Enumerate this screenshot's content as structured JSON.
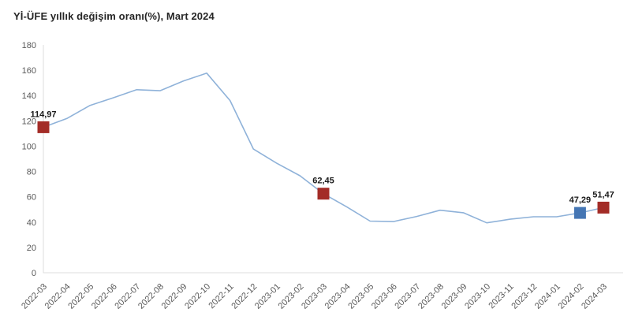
{
  "chart_data": {
    "type": "line",
    "title": "Yİ-ÜFE yıllık değişim oranı(%), Mart 2024",
    "categories": [
      "2022-03",
      "2022-04",
      "2022-05",
      "2022-06",
      "2022-07",
      "2022-08",
      "2022-09",
      "2022-10",
      "2022-11",
      "2022-12",
      "2023-01",
      "2023-02",
      "2023-03",
      "2023-04",
      "2023-05",
      "2023-06",
      "2023-07",
      "2023-08",
      "2023-09",
      "2023-10",
      "2023-11",
      "2023-12",
      "2024-01",
      "2024-02",
      "2024-03"
    ],
    "values": [
      114.97,
      121.8,
      132.2,
      138.3,
      144.6,
      143.8,
      151.5,
      157.7,
      136.0,
      97.7,
      86.5,
      76.6,
      62.45,
      52.1,
      40.8,
      40.4,
      44.5,
      49.4,
      47.4,
      39.4,
      42.3,
      44.2,
      44.2,
      47.29,
      51.47
    ],
    "y_ticks": [
      0,
      20,
      40,
      60,
      80,
      100,
      120,
      140,
      160,
      180
    ],
    "ylim": [
      0,
      180
    ],
    "grid": false,
    "legend": "none",
    "line_color": "#8FB2D9",
    "axis_color": "#DCDCDC",
    "marker_color_default": "#A32C27",
    "marker_color_highlight": "#4576B4",
    "labeled_points": [
      {
        "category": "2022-03",
        "label": "114,97",
        "marker": "red"
      },
      {
        "category": "2023-03",
        "label": "62,45",
        "marker": "red"
      },
      {
        "category": "2024-02",
        "label": "47,29",
        "marker": "blue"
      },
      {
        "category": "2024-03",
        "label": "51,47",
        "marker": "red"
      }
    ]
  }
}
